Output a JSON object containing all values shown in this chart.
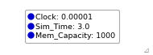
{
  "entries": [
    {
      "label": "Clock: 0.00001"
    },
    {
      "label": "Sim_Time: 3.0"
    },
    {
      "label": "Mem_Capacity: 1000"
    }
  ],
  "marker_color": "#0000cc",
  "marker_size": 5,
  "font_size": 6.8,
  "font_family": "sans-serif",
  "background_color": "#ffffff",
  "border_color": "#aaaaaa",
  "text_color": "#000000",
  "fig_width": 1.9,
  "fig_height": 0.68,
  "dpi": 100
}
